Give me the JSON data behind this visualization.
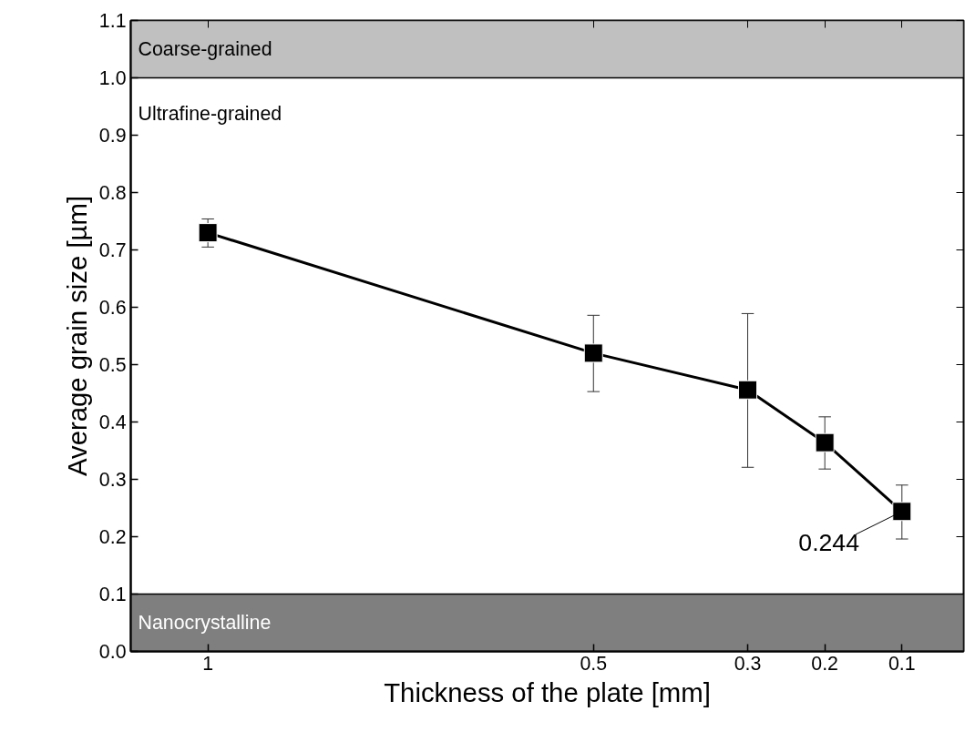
{
  "chart_data": {
    "type": "line",
    "xlabel": "Thickness of the plate [mm]",
    "ylabel": "Average grain size [µm]",
    "x": [
      1,
      0.5,
      0.3,
      0.2,
      0.1
    ],
    "series": [
      {
        "color": "#000000",
        "values": [
          0.73,
          0.52,
          0.456,
          0.364,
          0.244
        ],
        "errors": [
          [
            0.705,
            0.754
          ],
          [
            0.453,
            0.586
          ],
          [
            0.321,
            0.589
          ],
          [
            0.318,
            0.409
          ],
          [
            0.196,
            0.29
          ]
        ]
      }
    ],
    "xlim": [
      1.1,
      0.02
    ],
    "ylim": [
      0,
      1.1
    ],
    "xticks": [
      1,
      0.5,
      0.3,
      0.2,
      0.1
    ],
    "yticks": [
      {
        "value": 0,
        "label": "0.0"
      },
      0.1,
      0.2,
      0.3,
      0.4,
      0.5,
      0.6,
      0.7,
      0.8,
      0.9,
      {
        "value": 1,
        "label": "1.0"
      },
      1.1
    ],
    "bands": [
      {
        "axis": "y",
        "from": 0,
        "to": 0.1,
        "label": "Nanocrystalline",
        "color": "#7f7f7f"
      },
      {
        "axis": "y",
        "from": 1.0,
        "to": 1.1,
        "label": "Coarse-grained",
        "color": "#c0c0c0"
      }
    ],
    "annotations": [
      "Ultrafine-grained",
      {
        "text": "0.244",
        "x": 0.1,
        "y": 0.244
      }
    ],
    "marker": "square",
    "line_style": "solid",
    "grid": false
  }
}
